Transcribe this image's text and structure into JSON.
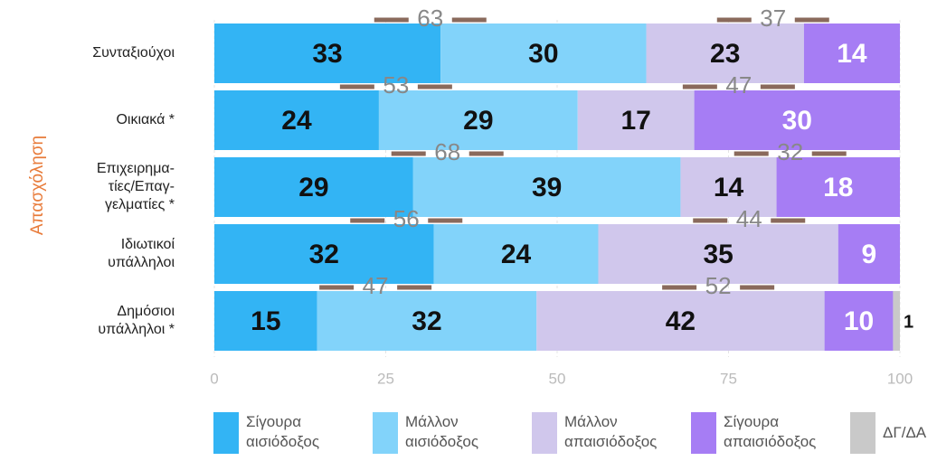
{
  "chart_data": {
    "type": "stacked-bar-horizontal",
    "y_axis_label": "Απασχόληση",
    "categories": [
      [
        "Συνταξιούχοι"
      ],
      [
        "Οικιακά *"
      ],
      [
        "Επιχειρημα-",
        "τίες/Επαγ-",
        "γελματίες *"
      ],
      [
        "Ιδιωτικοί",
        "υπάλληλοι"
      ],
      [
        "Δημόσιοι",
        "υπάλληλοι *"
      ]
    ],
    "series": [
      {
        "name": "Σίγουρα αισιόδοξος",
        "color": "#33b4f4",
        "label_color": "#111",
        "values": [
          33,
          24,
          29,
          32,
          15
        ]
      },
      {
        "name": "Μάλλον αισιόδοξος",
        "color": "#82d3fa",
        "label_color": "#111",
        "values": [
          30,
          29,
          39,
          24,
          32
        ]
      },
      {
        "name": "Μάλλον απαισιόδοξος",
        "color": "#d0c7ec",
        "label_color": "#111",
        "values": [
          23,
          17,
          14,
          35,
          42
        ]
      },
      {
        "name": "Σίγουρα απαισιόδοξος",
        "color": "#a67df4",
        "label_color": "#fff",
        "values": [
          14,
          30,
          18,
          9,
          10
        ]
      },
      {
        "name": "ΔΓ/ΔΑ",
        "color": "#c9c9c9",
        "label_color": "#111",
        "values": [
          null,
          null,
          null,
          null,
          1
        ]
      }
    ],
    "positive_totals": [
      63,
      53,
      68,
      56,
      47
    ],
    "negative_totals": [
      37,
      47,
      32,
      44,
      52
    ],
    "xlim": [
      0,
      100
    ],
    "xticks": [
      0,
      25,
      50,
      75,
      100
    ]
  }
}
